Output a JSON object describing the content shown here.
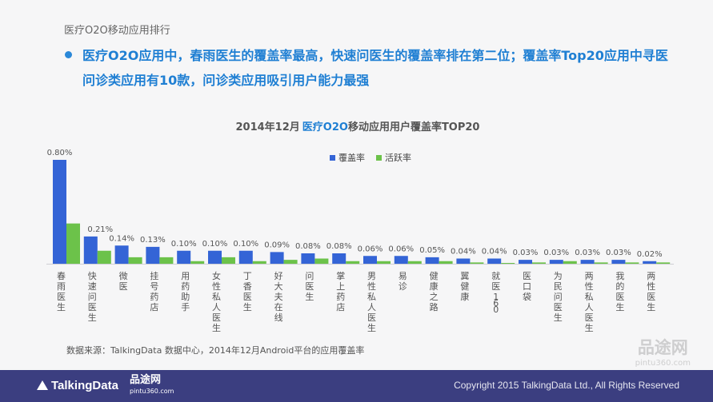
{
  "header": {
    "section_title": "医疗O2O移动应用排行",
    "headline": "医疗O2O应用中，春雨医生的覆盖率最高，快速问医生的覆盖率排在第二位；覆盖率Top20应用中寻医问诊类应用有10款，问诊类应用吸引用户能力最强"
  },
  "chart_data": {
    "type": "bar",
    "title_parts": [
      "2014年12月",
      "医疗O2O",
      "移动应用用户覆盖率TOP20"
    ],
    "categories": [
      "春雨医生",
      "快速问医生",
      "微医",
      "挂号药店",
      "用药助手",
      "女性私人医生",
      "丁香医生",
      "好大夫在线",
      "问医生",
      "掌上药店",
      "男性私人医生",
      "易诊",
      "健康之路",
      "翼健康",
      "就医160",
      "医口袋",
      "为民问医生",
      "两性私人医生",
      "我的医生",
      "两性医生"
    ],
    "series": [
      {
        "name": "覆盖率",
        "color": "#3464d6",
        "values": [
          0.8,
          0.21,
          0.14,
          0.13,
          0.1,
          0.1,
          0.1,
          0.09,
          0.08,
          0.08,
          0.06,
          0.06,
          0.05,
          0.04,
          0.04,
          0.03,
          0.03,
          0.03,
          0.03,
          0.02
        ]
      },
      {
        "name": "活跃率",
        "color": "#6cc24a",
        "values": [
          0.31,
          0.1,
          0.05,
          0.05,
          0.02,
          0.05,
          0.02,
          0.03,
          0.04,
          0.02,
          0.02,
          0.02,
          0.02,
          0.01,
          0.005,
          0.01,
          0.02,
          0.01,
          0.01,
          0.01
        ]
      }
    ],
    "data_labels": [
      "0.80%",
      "0.21%",
      "0.14%",
      "0.13%",
      "0.10%",
      "0.10%",
      "0.10%",
      "0.09%",
      "0.08%",
      "0.08%",
      "0.06%",
      "0.06%",
      "0.05%",
      "0.04%",
      "0.04%",
      "0.03%",
      "0.03%",
      "0.03%",
      "0.03%",
      "0.02%"
    ],
    "ylim": [
      0,
      0.8
    ],
    "legend_position": "top-center",
    "grid": false
  },
  "source": "数据来源：TalkingData 数据中心，2014年12月Android平台的应用覆盖率",
  "footer": {
    "logo_text": "TalkingData",
    "brand_name": "品途网",
    "brand_url": "pintu360.com",
    "copyright": "Copyright 2015 TalkingData Ltd., All Rights Reserved"
  },
  "watermark": {
    "name": "品途网",
    "url": "pintu360.com"
  }
}
